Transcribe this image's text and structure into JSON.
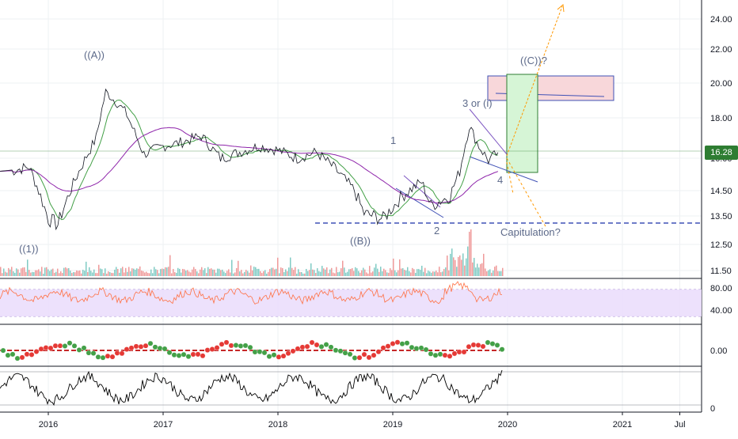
{
  "colors": {
    "background": "#ffffff",
    "grid": "#eef0f3",
    "axis_text": "#131722",
    "price_line": "#2e7d32",
    "wave_label": "#5d6a8a",
    "capitulation_line": "#3f51b5",
    "target_box_fill": "#f8d7da",
    "target_box_stroke": "#3f51b5",
    "green_box_fill": "#d6f5d6",
    "projection": "#ff9800",
    "rsi_band": "#eadcfb",
    "rsi_line": "#ff7043",
    "wave_up": "#43a047",
    "wave_down": "#c62828"
  },
  "price_axis": {
    "ticks": [
      "24.00",
      "22.00",
      "20.00",
      "18.00",
      "16.00",
      "14.50",
      "13.50",
      "12.50",
      "11.50"
    ],
    "last_price": "16.28"
  },
  "rsi_axis": {
    "ticks": [
      "80.00",
      "40.00"
    ]
  },
  "osc_axis": {
    "ticks": [
      "0.00"
    ]
  },
  "stoch_axis": {
    "ticks": [
      "0"
    ]
  },
  "time_axis": {
    "labels": [
      "2016",
      "2017",
      "2018",
      "2019",
      "2020",
      "2021",
      "Jul"
    ]
  },
  "annotations": {
    "wave_a": "((A))",
    "wave_1_big": "((1))",
    "wave_b": "((B))",
    "wave_c": "((C))?",
    "wave_1": "1",
    "wave_2": "2",
    "wave_3": "3 or (i)",
    "wave_4": "4",
    "capitulation": "Capitulation?"
  },
  "chart_data": {
    "type": "line",
    "x_range": [
      "2015-09",
      "2021-10"
    ],
    "ylim": [
      11.2,
      25.0
    ],
    "capitulation_level": 13.2,
    "series": [
      {
        "x": [
          "2015-09",
          "2015-11",
          "2016-01",
          "2016-02",
          "2016-04",
          "2016-06",
          "2016-07",
          "2016-09",
          "2016-11",
          "2017-01",
          "2017-03",
          "2017-05",
          "2017-07",
          "2017-09",
          "2017-11",
          "2018-01",
          "2018-03",
          "2018-05",
          "2018-07",
          "2018-09",
          "2018-10",
          "2018-12",
          "2019-02",
          "2019-04",
          "2019-05",
          "2019-07",
          "2019-08",
          "2019-09",
          "2019-10",
          "2019-11",
          "2019-12"
        ],
        "values": [
          15.4,
          15.6,
          13.4,
          13.2,
          15.2,
          17.0,
          19.5,
          18.4,
          16.2,
          16.6,
          16.8,
          17.1,
          16.0,
          16.3,
          16.6,
          16.4,
          16.0,
          16.3,
          15.5,
          14.5,
          13.6,
          13.4,
          14.3,
          14.9,
          13.9,
          14.3,
          15.4,
          17.6,
          16.6,
          15.9,
          16.28
        ]
      }
    ]
  }
}
